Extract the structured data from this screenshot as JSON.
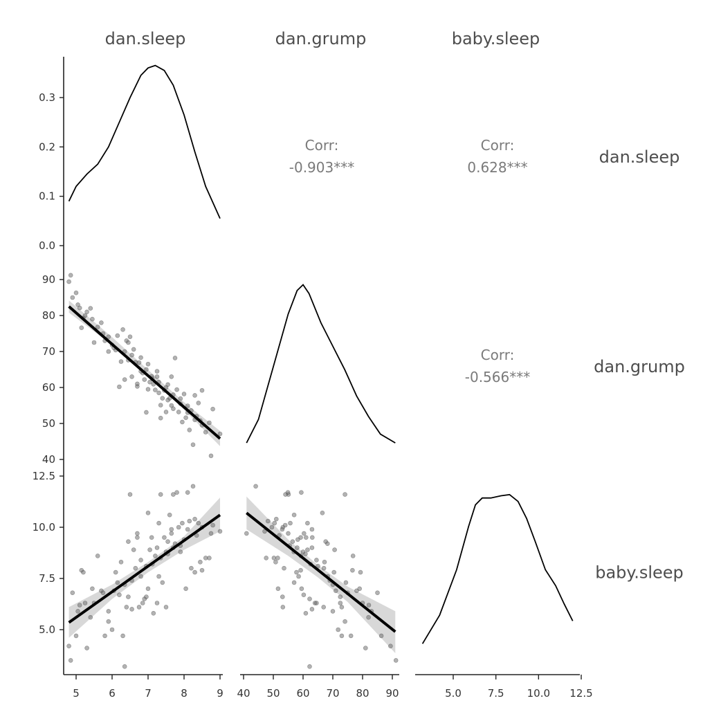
{
  "chart_data": {
    "type": "scatter",
    "variables": [
      "dan.sleep",
      "dan.grump",
      "baby.sleep"
    ],
    "row_labels": [
      "dan.sleep",
      "dan.grump",
      "baby.sleep"
    ],
    "x_ticks": {
      "dan.sleep": [
        "5",
        "6",
        "7",
        "8",
        "9"
      ],
      "dan.grump": [
        "40",
        "50",
        "60",
        "70",
        "80",
        "90"
      ],
      "baby.sleep": [
        "5.0",
        "7.5",
        "10.0",
        "12.5"
      ]
    },
    "y_ticks": {
      "density": [
        "0.0",
        "0.1",
        "0.2",
        "0.3"
      ],
      "dan.grump": [
        "40",
        "50",
        "60",
        "70",
        "80",
        "90"
      ],
      "baby.sleep": [
        "5.0",
        "7.5",
        "10.0",
        "12.5"
      ]
    },
    "ranges": {
      "dan.sleep": [
        4.75,
        9.1
      ],
      "dan.grump": [
        40,
        91
      ],
      "baby.sleep": [
        3.2,
        12.1
      ]
    },
    "correlations": [
      {
        "label": "Corr:",
        "value": "-0.903***",
        "pair": [
          "dan.sleep",
          "dan.grump"
        ]
      },
      {
        "label": "Corr:",
        "value": "0.628***",
        "pair": [
          "dan.sleep",
          "baby.sleep"
        ]
      },
      {
        "label": "Corr:",
        "value": "-0.566***",
        "pair": [
          "dan.grump",
          "baby.sleep"
        ]
      }
    ],
    "densities": {
      "dan.sleep": [
        [
          4.8,
          0.09
        ],
        [
          5.0,
          0.12
        ],
        [
          5.3,
          0.145
        ],
        [
          5.6,
          0.165
        ],
        [
          5.9,
          0.2
        ],
        [
          6.2,
          0.25
        ],
        [
          6.5,
          0.3
        ],
        [
          6.8,
          0.345
        ],
        [
          7.0,
          0.36
        ],
        [
          7.2,
          0.365
        ],
        [
          7.45,
          0.355
        ],
        [
          7.7,
          0.325
        ],
        [
          8.0,
          0.265
        ],
        [
          8.3,
          0.19
        ],
        [
          8.6,
          0.12
        ],
        [
          9.0,
          0.055
        ]
      ],
      "dan.grump": [
        [
          41,
          0.004
        ],
        [
          45,
          0.012
        ],
        [
          50,
          0.03
        ],
        [
          55,
          0.048
        ],
        [
          58,
          0.056
        ],
        [
          60,
          0.058
        ],
        [
          62,
          0.055
        ],
        [
          66,
          0.045
        ],
        [
          70,
          0.037
        ],
        [
          74,
          0.029
        ],
        [
          78,
          0.02
        ],
        [
          82,
          0.013
        ],
        [
          86,
          0.007
        ],
        [
          91,
          0.004
        ]
      ],
      "baby.sleep": [
        [
          3.2,
          0.015
        ],
        [
          4.2,
          0.04
        ],
        [
          5.2,
          0.08
        ],
        [
          5.9,
          0.118
        ],
        [
          6.3,
          0.137
        ],
        [
          6.7,
          0.143
        ],
        [
          7.2,
          0.143
        ],
        [
          7.8,
          0.145
        ],
        [
          8.3,
          0.146
        ],
        [
          8.8,
          0.14
        ],
        [
          9.3,
          0.125
        ],
        [
          9.8,
          0.105
        ],
        [
          10.4,
          0.08
        ],
        [
          11.0,
          0.066
        ],
        [
          11.5,
          0.05
        ],
        [
          12.0,
          0.035
        ]
      ],
      "ylim": {
        "dan.sleep": [
          0,
          0.38
        ],
        "dan.grump": [
          0,
          0.06
        ],
        "baby.sleep": [
          0,
          0.155
        ]
      }
    },
    "fits": [
      {
        "x": "dan.sleep",
        "y": "dan.grump",
        "line": [
          [
            4.8,
            82.5
          ],
          [
            9.0,
            45.8
          ]
        ],
        "band": [
          [
            4.8,
            84.2,
            80.8
          ],
          [
            6.0,
            74.0,
            71.8
          ],
          [
            7.0,
            64.9,
            63.2
          ],
          [
            8.0,
            55.9,
            53.8
          ],
          [
            9.0,
            47.9,
            43.7
          ]
        ]
      },
      {
        "x": "dan.sleep",
        "y": "baby.sleep",
        "line": [
          [
            4.8,
            5.35
          ],
          [
            9.0,
            10.6
          ]
        ],
        "band": [
          [
            4.8,
            6.1,
            4.6
          ],
          [
            6.0,
            7.2,
            6.5
          ],
          [
            7.0,
            8.3,
            7.8
          ],
          [
            8.0,
            9.55,
            8.9
          ],
          [
            9.0,
            11.45,
            9.8
          ]
        ]
      },
      {
        "x": "dan.grump",
        "y": "baby.sleep",
        "line": [
          [
            41,
            10.7
          ],
          [
            91,
            4.9
          ]
        ],
        "band": [
          [
            41,
            11.5,
            9.9
          ],
          [
            55,
            9.4,
            8.6
          ],
          [
            65,
            8.15,
            7.55
          ],
          [
            75,
            7.1,
            6.35
          ],
          [
            91,
            5.9,
            3.85
          ]
        ]
      }
    ],
    "points": [
      [
        4.8,
        89.4,
        4.2
      ],
      [
        4.85,
        91.2,
        3.5
      ],
      [
        5.0,
        86.3,
        4.7
      ],
      [
        5.1,
        82.1,
        6.2
      ],
      [
        5.15,
        76.6,
        7.9
      ],
      [
        5.2,
        79.3,
        7.8
      ],
      [
        5.3,
        81.0,
        4.1
      ],
      [
        5.4,
        82.0,
        5.6
      ],
      [
        5.5,
        72.5,
        6.3
      ],
      [
        5.6,
        76.8,
        8.6
      ],
      [
        5.7,
        78.0,
        6.9
      ],
      [
        5.8,
        73.0,
        4.7
      ],
      [
        5.9,
        74.1,
        5.4
      ],
      [
        6.0,
        71.8,
        5.0
      ],
      [
        6.1,
        70.4,
        7.8
      ],
      [
        6.15,
        74.4,
        7.3
      ],
      [
        6.2,
        60.2,
        6.7
      ],
      [
        6.25,
        67.2,
        8.3
      ],
      [
        6.3,
        76.1,
        4.7
      ],
      [
        6.35,
        62.2,
        3.2
      ],
      [
        6.4,
        73.0,
        6.1
      ],
      [
        6.45,
        67.6,
        9.3
      ],
      [
        6.5,
        74.1,
        11.6
      ],
      [
        6.55,
        63.0,
        6.0
      ],
      [
        6.6,
        70.6,
        8.9
      ],
      [
        6.7,
        60.3,
        9.7
      ],
      [
        6.75,
        66.9,
        6.1
      ],
      [
        6.8,
        68.3,
        7.6
      ],
      [
        6.85,
        64.0,
        6.3
      ],
      [
        6.9,
        62.2,
        6.5
      ],
      [
        6.95,
        53.1,
        6.6
      ],
      [
        7.0,
        66.5,
        10.7
      ],
      [
        7.05,
        61.5,
        8.9
      ],
      [
        7.1,
        63.1,
        9.5
      ],
      [
        7.15,
        60.9,
        5.8
      ],
      [
        7.2,
        59.3,
        8.6
      ],
      [
        7.25,
        64.5,
        6.3
      ],
      [
        7.3,
        61.5,
        10.2
      ],
      [
        7.35,
        55.1,
        11.6
      ],
      [
        7.4,
        57.0,
        7.3
      ],
      [
        7.45,
        59.2,
        9.5
      ],
      [
        7.5,
        53.2,
        6.1
      ],
      [
        7.55,
        60.8,
        8.7
      ],
      [
        7.6,
        57.0,
        10.6
      ],
      [
        7.65,
        55.0,
        9.7
      ],
      [
        7.7,
        54.1,
        11.6
      ],
      [
        7.75,
        68.2,
        9.2
      ],
      [
        7.8,
        59.4,
        11.7
      ],
      [
        7.85,
        53.2,
        10.0
      ],
      [
        7.9,
        56.9,
        8.8
      ],
      [
        7.95,
        50.4,
        10.2
      ],
      [
        8.0,
        58.2,
        9.4
      ],
      [
        8.05,
        51.6,
        7.0
      ],
      [
        8.1,
        54.9,
        11.7
      ],
      [
        8.15,
        48.2,
        10.3
      ],
      [
        8.2,
        53.6,
        8.0
      ],
      [
        8.25,
        44.1,
        12.0
      ],
      [
        8.3,
        57.8,
        7.8
      ],
      [
        8.35,
        52.0,
        9.6
      ],
      [
        8.4,
        55.7,
        10.2
      ],
      [
        8.45,
        50.8,
        8.3
      ],
      [
        8.5,
        59.2,
        7.9
      ],
      [
        8.6,
        47.6,
        8.5
      ],
      [
        8.7,
        50.2,
        8.5
      ],
      [
        8.75,
        41.0,
        9.7
      ],
      [
        8.8,
        54.0,
        10.1
      ],
      [
        9.0,
        47.1,
        9.8
      ],
      [
        4.9,
        85.0,
        6.8
      ],
      [
        5.05,
        83.0,
        5.9
      ],
      [
        5.25,
        80.0,
        6.3
      ],
      [
        5.45,
        79.0,
        7.0
      ],
      [
        5.75,
        75.0,
        6.8
      ],
      [
        6.05,
        71.0,
        6.9
      ],
      [
        6.65,
        67.0,
        8.0
      ],
      [
        6.8,
        64.5,
        8.4
      ],
      [
        7.12,
        62.5,
        8.2
      ],
      [
        7.3,
        58.5,
        7.6
      ],
      [
        7.5,
        60.0,
        8.8
      ],
      [
        7.7,
        58.0,
        9.0
      ],
      [
        7.9,
        55.5,
        9.1
      ],
      [
        8.1,
        53.0,
        9.9
      ],
      [
        8.3,
        51.0,
        10.4
      ],
      [
        8.5,
        49.5,
        10.0
      ],
      [
        6.35,
        70.0,
        7.2
      ],
      [
        6.55,
        69.0,
        7.4
      ],
      [
        6.95,
        65.0,
        8.1
      ],
      [
        7.25,
        63.0,
        9.0
      ],
      [
        7.55,
        56.5,
        9.3
      ],
      [
        7.0,
        59.5,
        7.0
      ],
      [
        6.7,
        61.0,
        9.5
      ],
      [
        5.9,
        70.0,
        5.9
      ],
      [
        6.45,
        72.5,
        6.6
      ],
      [
        7.35,
        51.5,
        8.5
      ],
      [
        7.65,
        63.0,
        9.9
      ]
    ]
  }
}
